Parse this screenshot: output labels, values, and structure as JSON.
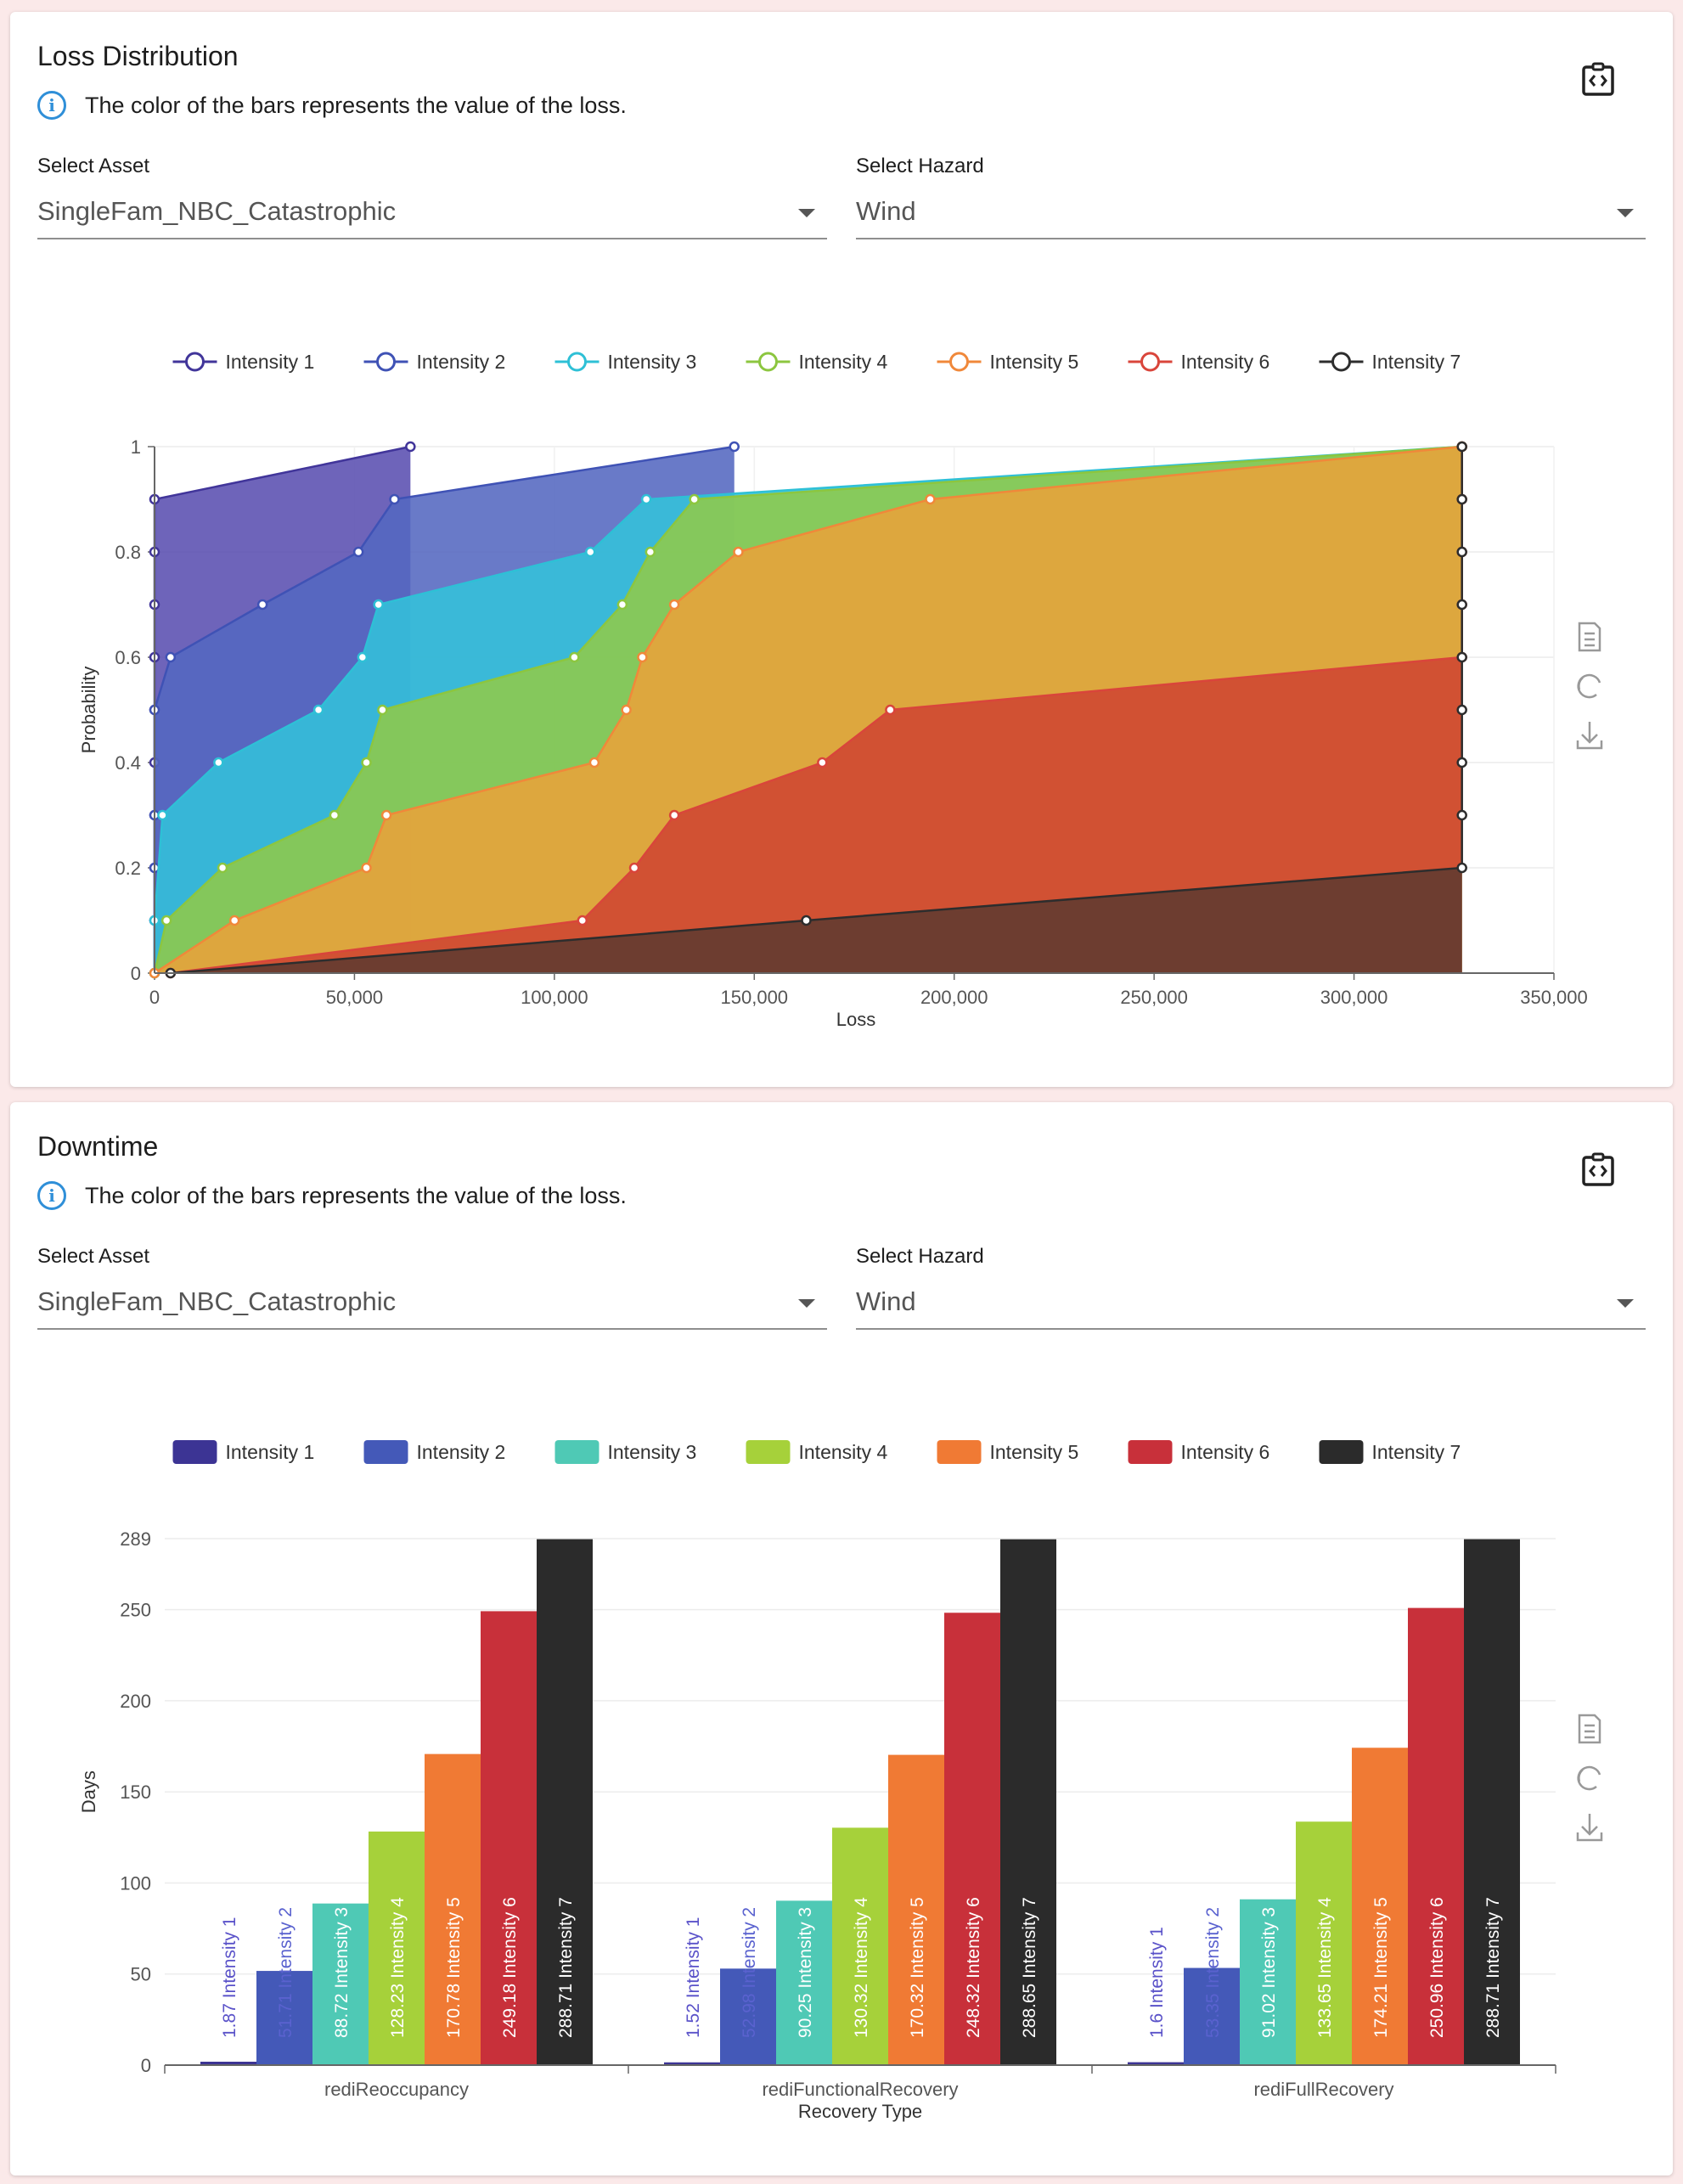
{
  "loss_card": {
    "title": "Loss Distribution",
    "info": "The color of the bars represents the value of the loss.",
    "asset_label": "Select Asset",
    "asset_value": "SingleFam_NBC_Catastrophic",
    "hazard_label": "Select Hazard",
    "hazard_value": "Wind",
    "embed_icon": "embed-code-icon",
    "toolbox": [
      "data-view-icon",
      "restore-icon",
      "download-icon"
    ]
  },
  "downtime_card": {
    "title": "Downtime",
    "info": "The color of the bars represents the value of the loss.",
    "asset_label": "Select Asset",
    "asset_value": "SingleFam_NBC_Catastrophic",
    "hazard_label": "Select Hazard",
    "hazard_value": "Wind",
    "embed_icon": "embed-code-icon",
    "toolbox": [
      "data-view-icon",
      "restore-icon",
      "download-icon"
    ]
  },
  "chart_data": [
    {
      "type": "area",
      "title": "Loss Distribution",
      "xlabel": "Loss",
      "ylabel": "Probability",
      "xlim": [
        0,
        350000
      ],
      "ylim": [
        0,
        1
      ],
      "x_ticks": [
        "0",
        "50,000",
        "100,000",
        "150,000",
        "200,000",
        "250,000",
        "300,000",
        "350,000"
      ],
      "y_ticks": [
        "0",
        "0.2",
        "0.4",
        "0.6",
        "0.8",
        "1"
      ],
      "legend": "top-center",
      "grid": true,
      "series": [
        {
          "name": "Intensity 1",
          "color": "#41359a",
          "fill": "#5a4fb0",
          "points": [
            [
              0,
              0
            ],
            [
              0,
              0.1
            ],
            [
              0,
              0.2
            ],
            [
              0,
              0.3
            ],
            [
              0,
              0.4
            ],
            [
              0,
              0.5
            ],
            [
              0,
              0.6
            ],
            [
              0,
              0.7
            ],
            [
              0,
              0.8
            ],
            [
              0,
              0.9
            ],
            [
              64000,
              1
            ]
          ]
        },
        {
          "name": "Intensity 2",
          "color": "#3f52b5",
          "fill": "#5468c0",
          "points": [
            [
              0,
              0
            ],
            [
              0,
              0.1
            ],
            [
              0,
              0.2
            ],
            [
              0,
              0.3
            ],
            [
              0,
              0.5
            ],
            [
              4000,
              0.6
            ],
            [
              27000,
              0.7
            ],
            [
              51000,
              0.8
            ],
            [
              60000,
              0.9
            ],
            [
              145000,
              1
            ]
          ]
        },
        {
          "name": "Intensity 3",
          "color": "#2ec0d6",
          "fill": "#33c1d9",
          "points": [
            [
              0,
              0
            ],
            [
              0,
              0.1
            ],
            [
              2000,
              0.3
            ],
            [
              16000,
              0.4
            ],
            [
              41000,
              0.5
            ],
            [
              52000,
              0.6
            ],
            [
              56000,
              0.7
            ],
            [
              109000,
              0.8
            ],
            [
              123000,
              0.9
            ],
            [
              327000,
              1
            ]
          ]
        },
        {
          "name": "Intensity 4",
          "color": "#8cc63f",
          "fill": "#90c94a",
          "points": [
            [
              0,
              0
            ],
            [
              3000,
              0.1
            ],
            [
              17000,
              0.2
            ],
            [
              45000,
              0.3
            ],
            [
              53000,
              0.4
            ],
            [
              57000,
              0.5
            ],
            [
              105000,
              0.6
            ],
            [
              117000,
              0.7
            ],
            [
              124000,
              0.8
            ],
            [
              135000,
              0.9
            ],
            [
              327000,
              1
            ]
          ]
        },
        {
          "name": "Intensity 5",
          "color": "#f0883a",
          "fill": "#e9a23a",
          "points": [
            [
              0,
              0
            ],
            [
              20000,
              0.1
            ],
            [
              53000,
              0.2
            ],
            [
              58000,
              0.3
            ],
            [
              110000,
              0.4
            ],
            [
              118000,
              0.5
            ],
            [
              122000,
              0.6
            ],
            [
              130000,
              0.7
            ],
            [
              146000,
              0.8
            ],
            [
              194000,
              0.9
            ],
            [
              327000,
              1
            ]
          ]
        },
        {
          "name": "Intensity 6",
          "color": "#d9453b",
          "fill": "#cf4532",
          "points": [
            [
              4000,
              0
            ],
            [
              107000,
              0.1
            ],
            [
              120000,
              0.2
            ],
            [
              130000,
              0.3
            ],
            [
              167000,
              0.4
            ],
            [
              184000,
              0.5
            ],
            [
              327000,
              0.6
            ],
            [
              327000,
              0.7
            ],
            [
              327000,
              0.8
            ],
            [
              327000,
              0.9
            ],
            [
              327000,
              1
            ]
          ]
        },
        {
          "name": "Intensity 7",
          "color": "#2d2d2d",
          "fill": "#5f3a30",
          "points": [
            [
              4000,
              0
            ],
            [
              163000,
              0.1
            ],
            [
              327000,
              0.2
            ],
            [
              327000,
              0.3
            ],
            [
              327000,
              0.4
            ],
            [
              327000,
              0.5
            ],
            [
              327000,
              0.6
            ],
            [
              327000,
              0.7
            ],
            [
              327000,
              0.8
            ],
            [
              327000,
              0.9
            ],
            [
              327000,
              1
            ]
          ]
        }
      ]
    },
    {
      "type": "bar",
      "title": "Downtime",
      "xlabel": "Recovery Type",
      "ylabel": "Days",
      "ylim": [
        0,
        289
      ],
      "y_ticks": [
        0,
        50,
        100,
        150,
        200,
        250,
        289
      ],
      "legend": "top-center",
      "categories": [
        "rediReoccupancy",
        "rediFunctionalRecovery",
        "rediFullRecovery"
      ],
      "series": [
        {
          "name": "Intensity 1",
          "color": "#3c3494",
          "values": [
            1.87,
            1.52,
            1.6
          ],
          "labels": [
            "1.87",
            "1.52",
            "1.6"
          ]
        },
        {
          "name": "Intensity 2",
          "color": "#4459b8",
          "values": [
            51.71,
            52.98,
            53.35
          ],
          "labels": [
            "51.71",
            "52.98",
            "53.35"
          ]
        },
        {
          "name": "Intensity 3",
          "color": "#4fc9b5",
          "values": [
            88.72,
            90.25,
            91.02
          ],
          "labels": [
            "88.72",
            "90.25",
            "91.02"
          ]
        },
        {
          "name": "Intensity 4",
          "color": "#a6d13a",
          "values": [
            128.23,
            130.32,
            133.65
          ],
          "labels": [
            "128.23",
            "130.32",
            "133.65"
          ]
        },
        {
          "name": "Intensity 5",
          "color": "#f07a34",
          "values": [
            170.78,
            170.32,
            174.21
          ],
          "labels": [
            "170.78",
            "170.32",
            "174.21"
          ]
        },
        {
          "name": "Intensity 6",
          "color": "#c8303a",
          "values": [
            249.18,
            248.32,
            250.96
          ],
          "labels": [
            "249.18",
            "248.32",
            "250.96"
          ]
        },
        {
          "name": "Intensity 7",
          "color": "#2b2b2b",
          "values": [
            288.71,
            288.65,
            288.71
          ],
          "labels": [
            "288.71",
            "288.65",
            "288.71"
          ]
        }
      ]
    }
  ]
}
